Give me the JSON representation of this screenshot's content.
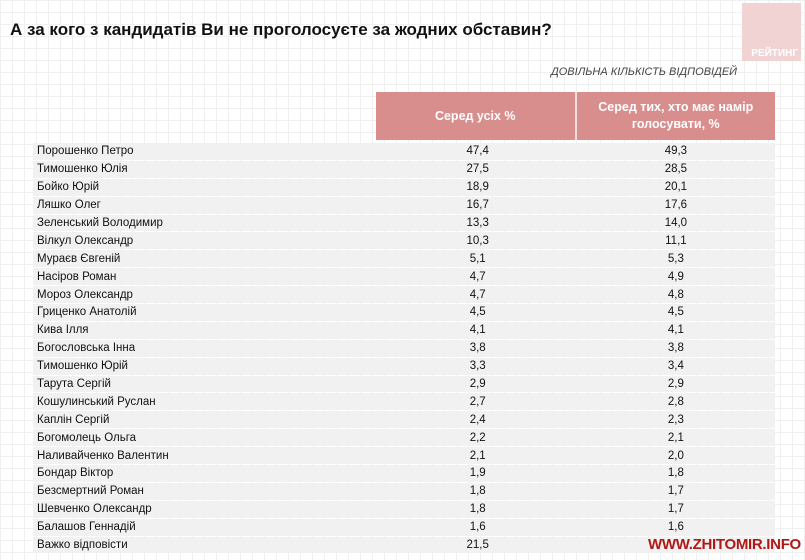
{
  "title": "А за кого з кандидатів Ви не проголосуєте за жодних обставин?",
  "logo": "РЕЙТИНГ",
  "subtitle": "ДОВІЛЬНА КІЛЬКІСТЬ ВІДПОВІДЕЙ",
  "columns": [
    "Серед усіх %",
    "Серед тих, хто має намір голосувати, %"
  ],
  "rows": [
    {
      "name": "Порошенко Петро",
      "all": "47,4",
      "voters": "49,3"
    },
    {
      "name": "Тимошенко Юлія",
      "all": "27,5",
      "voters": "28,5"
    },
    {
      "name": "Бойко Юрій",
      "all": "18,9",
      "voters": "20,1"
    },
    {
      "name": "Ляшко Олег",
      "all": "16,7",
      "voters": "17,6"
    },
    {
      "name": "Зеленський Володимир",
      "all": "13,3",
      "voters": "14,0"
    },
    {
      "name": "Вілкул Олександр",
      "all": "10,3",
      "voters": "11,1"
    },
    {
      "name": "Мураєв Євгеній",
      "all": "5,1",
      "voters": "5,3"
    },
    {
      "name": "Насіров Роман",
      "all": "4,7",
      "voters": "4,9"
    },
    {
      "name": "Мороз Олександр",
      "all": "4,7",
      "voters": "4,8"
    },
    {
      "name": "Гриценко Анатолій",
      "all": "4,5",
      "voters": "4,5"
    },
    {
      "name": "Кива Ілля",
      "all": "4,1",
      "voters": "4,1"
    },
    {
      "name": "Богословська Інна",
      "all": "3,8",
      "voters": "3,8"
    },
    {
      "name": "Тимошенко Юрій",
      "all": "3,3",
      "voters": "3,4"
    },
    {
      "name": "Тарута Сергій",
      "all": "2,9",
      "voters": "2,9"
    },
    {
      "name": "Кошулинський Руслан",
      "all": "2,7",
      "voters": "2,8"
    },
    {
      "name": "Каплін Сергій",
      "all": "2,4",
      "voters": "2,3"
    },
    {
      "name": "Богомолець Ольга",
      "all": "2,2",
      "voters": "2,1"
    },
    {
      "name": "Наливайченко Валентин",
      "all": "2,1",
      "voters": "2,0"
    },
    {
      "name": "Бондар Віктор",
      "all": "1,9",
      "voters": "1,8"
    },
    {
      "name": "Безсмертний Роман",
      "all": "1,8",
      "voters": "1,7"
    },
    {
      "name": "Шевченко Олександр",
      "all": "1,8",
      "voters": "1,7"
    },
    {
      "name": "Балашов Геннадій",
      "all": "1,6",
      "voters": "1,6"
    },
    {
      "name": "Важко відповісти",
      "all": "21,5",
      "voters": ""
    }
  ],
  "watermark": "WWW.ZHITOMIR.INFO"
}
